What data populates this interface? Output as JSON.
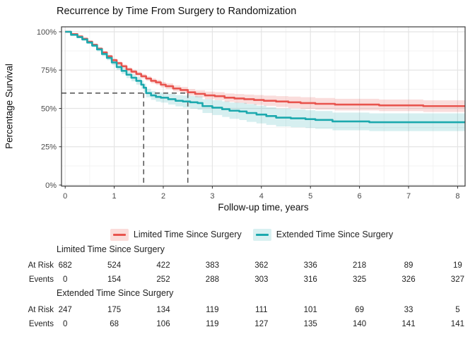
{
  "title": "Recurrence by Time From Surgery to Randomization",
  "colors": {
    "limited_line": "#E8544E",
    "limited_band": "rgba(232,84,78,0.20)",
    "limited_swatch": "#FBDCDA",
    "extended_line": "#1CA9AE",
    "extended_band": "rgba(28,169,174,0.18)",
    "extended_swatch": "#D8F0F1",
    "grid_major": "#E4E4E4",
    "grid_minor": "#F3F3F3",
    "panel_border": "#3D3D3D",
    "reference_dash": "#5A5A5A",
    "tick_text": "#4A4A4A"
  },
  "chart_data": {
    "type": "line",
    "subtype": "kaplan-meier-step",
    "title": "Recurrence by Time From Surgery to Randomization",
    "xlabel": "Follow-up time, years",
    "ylabel": "Percentage Survival",
    "xlim": [
      0,
      8.2
    ],
    "ylim": [
      0,
      100
    ],
    "xticks": [
      0,
      1,
      2,
      3,
      4,
      5,
      6,
      7,
      8
    ],
    "ytick_values": [
      0,
      25,
      50,
      75,
      100
    ],
    "ytick_labels": [
      "0%",
      "25%",
      "50%",
      "75%",
      "100%"
    ],
    "grid": true,
    "legend_position": "bottom",
    "reference_lines": {
      "y_percent": 60,
      "x_years": [
        1.6,
        2.5
      ]
    },
    "series": [
      {
        "name": "Limited Time Since Surgery",
        "color": "#E8544E",
        "band_color": "rgba(232,84,78,0.20)",
        "ci_halfwidth": {
          "base": 0.3,
          "slope": 0.75,
          "max": 3.8
        },
        "points": [
          [
            0,
            100
          ],
          [
            0.12,
            98.5
          ],
          [
            0.25,
            97
          ],
          [
            0.35,
            95.5
          ],
          [
            0.45,
            93.5
          ],
          [
            0.55,
            91.5
          ],
          [
            0.65,
            89
          ],
          [
            0.75,
            86.5
          ],
          [
            0.85,
            84
          ],
          [
            0.95,
            81.5
          ],
          [
            1.05,
            79.5
          ],
          [
            1.15,
            77.5
          ],
          [
            1.25,
            75.5
          ],
          [
            1.35,
            74
          ],
          [
            1.45,
            72.5
          ],
          [
            1.55,
            71
          ],
          [
            1.65,
            69.5
          ],
          [
            1.75,
            68
          ],
          [
            1.85,
            67
          ],
          [
            1.95,
            65.5
          ],
          [
            2.05,
            64.5
          ],
          [
            2.2,
            63
          ],
          [
            2.35,
            62
          ],
          [
            2.5,
            60.5
          ],
          [
            2.65,
            59.5
          ],
          [
            2.85,
            58.5
          ],
          [
            3.05,
            58
          ],
          [
            3.25,
            57
          ],
          [
            3.45,
            56.5
          ],
          [
            3.65,
            56
          ],
          [
            3.85,
            55.5
          ],
          [
            4.05,
            55
          ],
          [
            4.3,
            54.5
          ],
          [
            4.55,
            54
          ],
          [
            4.8,
            53.5
          ],
          [
            5.1,
            53
          ],
          [
            5.5,
            52.5
          ],
          [
            6.0,
            52.5
          ],
          [
            6.4,
            52
          ],
          [
            7.0,
            52
          ],
          [
            7.3,
            51.5
          ],
          [
            8.15,
            51.5
          ]
        ]
      },
      {
        "name": "Extended Time Since Surgery",
        "color": "#1CA9AE",
        "band_color": "rgba(28,169,174,0.18)",
        "ci_halfwidth": {
          "base": 0.3,
          "slope": 1.5,
          "max": 5.8
        },
        "points": [
          [
            0,
            100
          ],
          [
            0.12,
            98
          ],
          [
            0.25,
            96.5
          ],
          [
            0.35,
            95
          ],
          [
            0.45,
            93
          ],
          [
            0.55,
            91
          ],
          [
            0.65,
            88.5
          ],
          [
            0.75,
            85.5
          ],
          [
            0.85,
            83
          ],
          [
            0.95,
            80
          ],
          [
            1.05,
            77
          ],
          [
            1.15,
            74.5
          ],
          [
            1.25,
            72
          ],
          [
            1.35,
            70
          ],
          [
            1.45,
            68
          ],
          [
            1.55,
            65.5
          ],
          [
            1.6,
            63.5
          ],
          [
            1.65,
            60
          ],
          [
            1.75,
            58.5
          ],
          [
            1.85,
            57.5
          ],
          [
            1.95,
            57
          ],
          [
            2.1,
            56
          ],
          [
            2.25,
            55
          ],
          [
            2.4,
            54.5
          ],
          [
            2.55,
            54
          ],
          [
            2.7,
            53.5
          ],
          [
            2.8,
            51.5
          ],
          [
            3.0,
            50.5
          ],
          [
            3.2,
            49.5
          ],
          [
            3.35,
            48.5
          ],
          [
            3.55,
            48
          ],
          [
            3.7,
            47
          ],
          [
            3.9,
            46
          ],
          [
            4.1,
            45
          ],
          [
            4.3,
            44
          ],
          [
            4.6,
            43.5
          ],
          [
            4.9,
            43
          ],
          [
            5.1,
            42.5
          ],
          [
            5.45,
            41.5
          ],
          [
            6.2,
            41
          ],
          [
            8.15,
            41
          ]
        ]
      }
    ]
  },
  "legend": {
    "items": [
      {
        "label": "Limited Time Since Surgery"
      },
      {
        "label": "Extended Time Since Surgery"
      }
    ]
  },
  "risk_table": {
    "row_labels": {
      "at_risk": "At Risk",
      "events": "Events"
    },
    "time_columns": [
      0,
      1,
      2,
      3,
      4,
      5,
      6,
      7,
      8
    ],
    "groups": [
      {
        "name": "Limited Time Since Surgery",
        "at_risk": [
          682,
          524,
          422,
          383,
          362,
          336,
          218,
          89,
          19
        ],
        "events": [
          0,
          154,
          252,
          288,
          303,
          316,
          325,
          326,
          327
        ]
      },
      {
        "name": "Extended Time Since Surgery",
        "at_risk": [
          247,
          175,
          134,
          119,
          111,
          101,
          69,
          33,
          5
        ],
        "events": [
          0,
          68,
          106,
          119,
          127,
          135,
          140,
          141,
          141
        ]
      }
    ]
  }
}
